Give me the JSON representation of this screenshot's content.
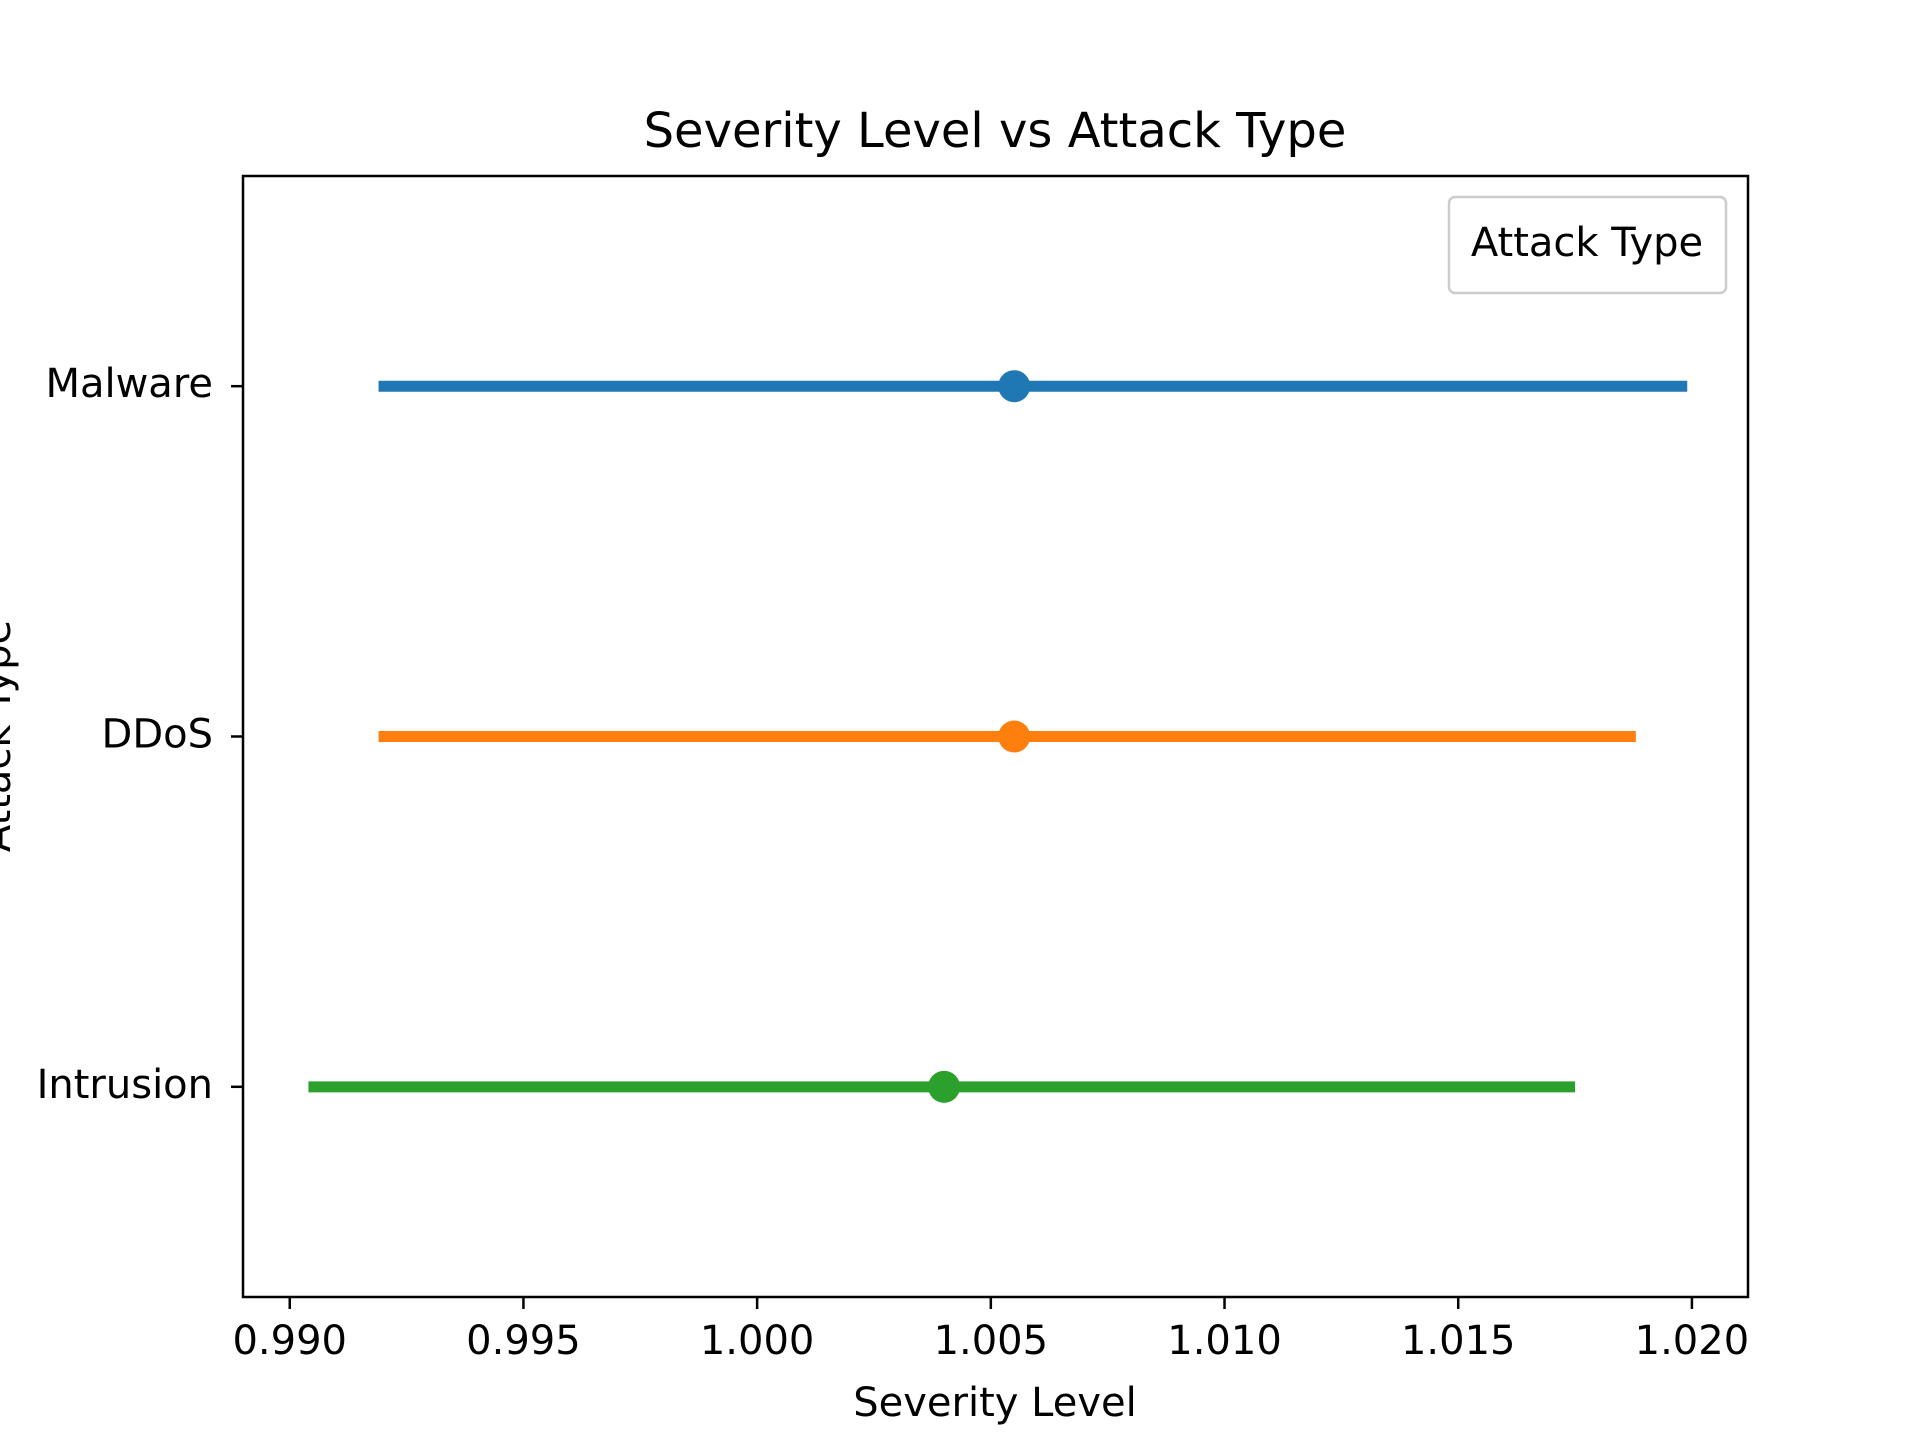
{
  "chart_data": {
    "type": "scatter",
    "title": "Severity Level vs Attack Type",
    "xlabel": "Severity Level",
    "ylabel": "Attack Type",
    "xlim": [
      0.989,
      1.0212
    ],
    "x_ticks": [
      "0.990",
      "0.995",
      "1.000",
      "1.005",
      "1.010",
      "1.015",
      "1.020"
    ],
    "categories": [
      "Malware",
      "DDoS",
      "Intrusion"
    ],
    "series": [
      {
        "category": "Malware",
        "value": 1.0055,
        "ci_low": 0.9919,
        "ci_high": 1.0199,
        "color": "#1f77b4"
      },
      {
        "category": "DDoS",
        "value": 1.0055,
        "ci_low": 0.9919,
        "ci_high": 1.0188,
        "color": "#ff7f0e"
      },
      {
        "category": "Intrusion",
        "value": 1.004,
        "ci_low": 0.9904,
        "ci_high": 1.0175,
        "color": "#2ca02c"
      }
    ],
    "legend": {
      "title": "Attack Type",
      "position": "top-right"
    },
    "grid": false
  }
}
